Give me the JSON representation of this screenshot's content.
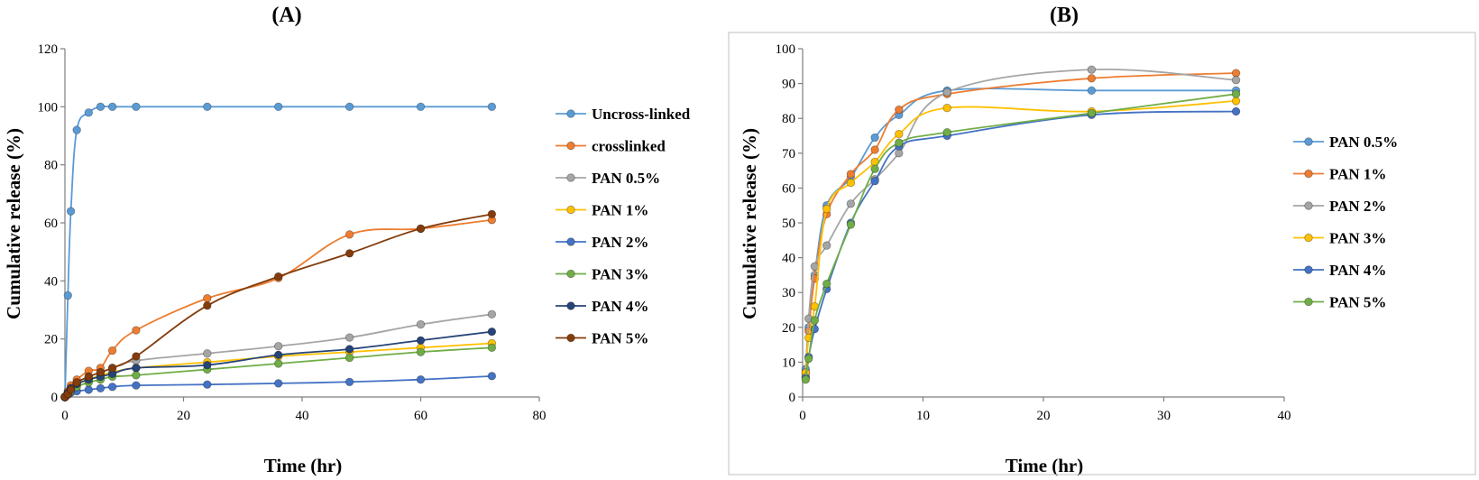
{
  "chart_data": [
    {
      "type": "line",
      "title": "(A)",
      "xlabel": "Time (hr)",
      "ylabel": "Cumulative release (%)",
      "xlim": [
        0,
        80
      ],
      "ylim": [
        0,
        120
      ],
      "xticks": [
        0,
        20,
        40,
        60,
        80
      ],
      "yticks": [
        0,
        20,
        40,
        60,
        80,
        100,
        120
      ],
      "legend_position": "right",
      "series": [
        {
          "name": "Uncross-linked",
          "color": "#5b9bd5",
          "x": [
            0,
            0.5,
            1,
            2,
            4,
            6,
            8,
            12,
            24,
            36,
            48,
            60,
            72
          ],
          "y": [
            0,
            35,
            64,
            92,
            98,
            100,
            100,
            100,
            100,
            100,
            100,
            100,
            100
          ]
        },
        {
          "name": "crosslinked",
          "color": "#ed7d31",
          "x": [
            0,
            0.5,
            1,
            2,
            4,
            6,
            8,
            12,
            24,
            36,
            48,
            60,
            72
          ],
          "y": [
            0,
            2,
            4,
            6,
            9,
            10,
            16,
            23,
            34,
            41,
            56,
            58,
            61
          ]
        },
        {
          "name": "PAN 0.5%",
          "color": "#a5a5a5",
          "x": [
            0,
            0.5,
            1,
            2,
            4,
            6,
            8,
            12,
            24,
            36,
            48,
            60,
            72
          ],
          "y": [
            0,
            1.5,
            3,
            5,
            7,
            8.5,
            10,
            12.5,
            15,
            17.5,
            20.5,
            25,
            28.5
          ]
        },
        {
          "name": "PAN 1%",
          "color": "#ffc000",
          "x": [
            0,
            0.5,
            1,
            2,
            4,
            6,
            8,
            12,
            24,
            36,
            48,
            60,
            72
          ],
          "y": [
            0,
            1.2,
            2.5,
            4.5,
            6,
            7.5,
            8.5,
            10,
            12,
            14,
            15.5,
            17,
            18.5
          ]
        },
        {
          "name": "PAN 2%",
          "color": "#4472c4",
          "x": [
            0,
            0.5,
            1,
            2,
            4,
            6,
            8,
            12,
            24,
            36,
            48,
            60,
            72
          ],
          "y": [
            0,
            0.8,
            1.5,
            2,
            2.5,
            3,
            3.5,
            4,
            4.3,
            4.7,
            5.2,
            6,
            7.2
          ]
        },
        {
          "name": "PAN 3%",
          "color": "#70ad47",
          "x": [
            0,
            0.5,
            1,
            2,
            4,
            6,
            8,
            12,
            24,
            36,
            48,
            60,
            72
          ],
          "y": [
            0,
            1,
            2,
            3.5,
            5,
            6,
            7,
            7.5,
            9.5,
            11.5,
            13.5,
            15.5,
            17
          ]
        },
        {
          "name": "PAN 4%",
          "color": "#264478",
          "x": [
            0,
            0.5,
            1,
            2,
            4,
            6,
            8,
            12,
            24,
            36,
            48,
            60,
            72
          ],
          "y": [
            0,
            1.5,
            3,
            4.5,
            6,
            7,
            8,
            10,
            11,
            14.5,
            16.5,
            19.5,
            22.5
          ]
        },
        {
          "name": "PAN 5%",
          "color": "#843c0c",
          "x": [
            0,
            0.5,
            1,
            2,
            4,
            6,
            8,
            12,
            24,
            36,
            48,
            60,
            72
          ],
          "y": [
            0,
            1,
            2.5,
            5,
            7,
            8.5,
            10,
            14,
            31.5,
            41.5,
            49.5,
            58,
            63
          ]
        }
      ]
    },
    {
      "type": "line",
      "title": "(B)",
      "xlabel": "Time (hr)",
      "ylabel": "Cumulative release (%)",
      "xlim": [
        0,
        40
      ],
      "ylim": [
        0,
        100
      ],
      "xticks": [
        0,
        10,
        20,
        30,
        40
      ],
      "yticks": [
        0,
        10,
        20,
        30,
        40,
        50,
        60,
        70,
        80,
        90,
        100
      ],
      "legend_position": "right",
      "series": [
        {
          "name": "PAN 0.5%",
          "color": "#5b9bd5",
          "x": [
            0.25,
            0.5,
            1,
            2,
            4,
            6,
            8,
            12,
            24,
            36
          ],
          "y": [
            8,
            20,
            35,
            55,
            63,
            74.5,
            81,
            88,
            88,
            88
          ]
        },
        {
          "name": "PAN 1%",
          "color": "#ed7d31",
          "x": [
            0.25,
            0.5,
            1,
            2,
            4,
            6,
            8,
            12,
            24,
            36
          ],
          "y": [
            7,
            19,
            34,
            52.5,
            64,
            71,
            82.5,
            87,
            91.5,
            93
          ]
        },
        {
          "name": "PAN 2%",
          "color": "#a5a5a5",
          "x": [
            0.25,
            0.5,
            1,
            2,
            4,
            6,
            8,
            12,
            24,
            36
          ],
          "y": [
            6,
            22.5,
            37.5,
            43.5,
            55.5,
            62.5,
            70,
            87.5,
            94,
            91
          ]
        },
        {
          "name": "PAN 3%",
          "color": "#ffc000",
          "x": [
            0.25,
            0.5,
            1,
            2,
            4,
            6,
            8,
            12,
            24,
            36
          ],
          "y": [
            7,
            17,
            26,
            54,
            61.5,
            67.5,
            75.5,
            83,
            82,
            85
          ]
        },
        {
          "name": "PAN 4%",
          "color": "#4472c4",
          "x": [
            0.25,
            0.5,
            1,
            2,
            4,
            6,
            8,
            12,
            24,
            36
          ],
          "y": [
            5.5,
            11.5,
            19.5,
            31,
            50,
            62,
            72,
            75,
            81,
            82
          ]
        },
        {
          "name": "PAN 5%",
          "color": "#70ad47",
          "x": [
            0.25,
            0.5,
            1,
            2,
            4,
            6,
            8,
            12,
            24,
            36
          ],
          "y": [
            5,
            11,
            22,
            32.5,
            49.5,
            65.5,
            73,
            76,
            81.5,
            87
          ]
        }
      ]
    }
  ]
}
